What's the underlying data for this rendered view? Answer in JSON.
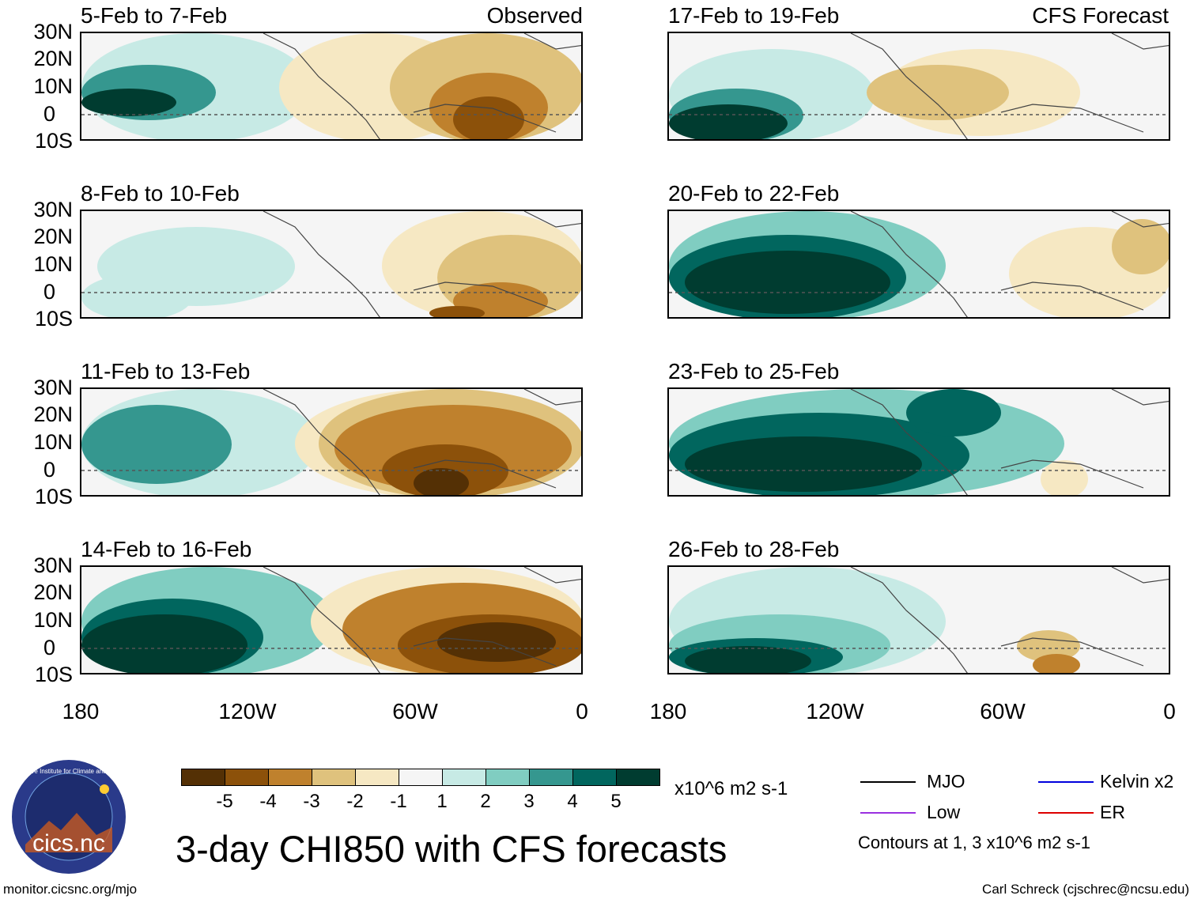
{
  "panels": [
    {
      "title": "5-Feb to 7-Feb",
      "tag": "Observed",
      "column": "left"
    },
    {
      "title": "8-Feb to 10-Feb",
      "tag": "",
      "column": "left"
    },
    {
      "title": "11-Feb to 13-Feb",
      "tag": "",
      "column": "left"
    },
    {
      "title": "14-Feb to 16-Feb",
      "tag": "",
      "column": "left"
    },
    {
      "title": "17-Feb to 19-Feb",
      "tag": "CFS Forecast",
      "column": "right"
    },
    {
      "title": "20-Feb to 22-Feb",
      "tag": "",
      "column": "right"
    },
    {
      "title": "23-Feb to 25-Feb",
      "tag": "",
      "column": "right"
    },
    {
      "title": "26-Feb to 28-Feb",
      "tag": "",
      "column": "right"
    }
  ],
  "lat_labels": [
    "30N",
    "20N",
    "10N",
    "0",
    "10S"
  ],
  "lon_labels": [
    "180",
    "120W",
    "60W",
    "0"
  ],
  "colorbar": {
    "ticks": [
      "-5",
      "-4",
      "-3",
      "-2",
      "-1",
      "1",
      "2",
      "3",
      "4",
      "5"
    ],
    "colors": [
      "#543005",
      "#8c510a",
      "#bf812d",
      "#dfc27d",
      "#f6e8c3",
      "#f5f5f5",
      "#c7eae5",
      "#80cdc1",
      "#35978f",
      "#01665e",
      "#003c30"
    ],
    "units": "x10^6 m2 s-1"
  },
  "legend": {
    "items": [
      {
        "label": "MJO",
        "color": "#000000"
      },
      {
        "label": "Kelvin x2",
        "color": "#0000dd"
      },
      {
        "label": "Low",
        "color": "#9a30e0"
      },
      {
        "label": "ER",
        "color": "#dd0000"
      }
    ],
    "note": "Contours at 1, 3 x10^6 m2 s-1"
  },
  "main_title": "3-day CHI850 with CFS forecasts",
  "logo": {
    "text": "cics.nc",
    "ring_text": "Cooperative Institute for Climate and Satellites"
  },
  "footer": {
    "left": "monitor.cicsnc.org/mjo",
    "right": "Carl Schreck (cjschrec@ncsu.edu)"
  }
}
